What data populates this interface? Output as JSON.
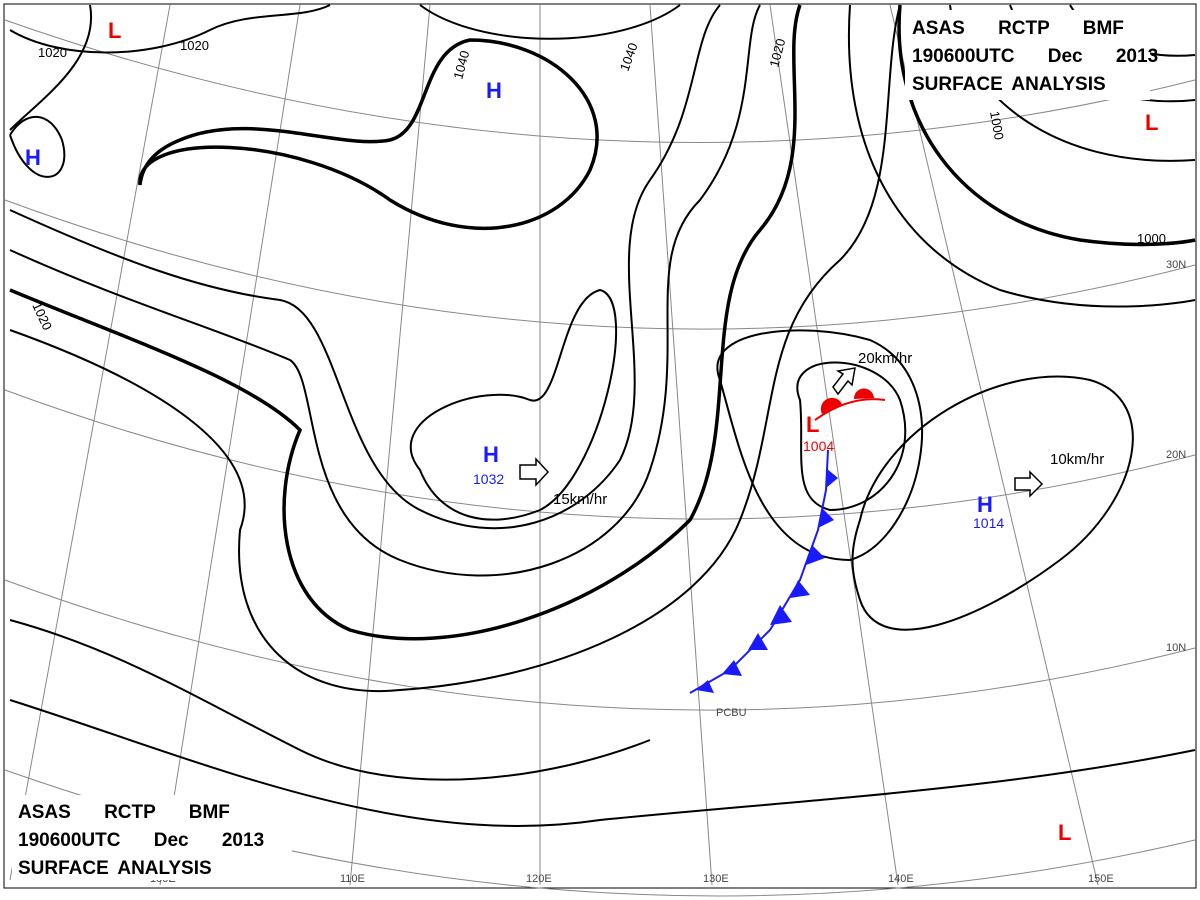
{
  "header_top": [
    "ASAS RCTP BMF",
    "190600UTC Dec 2013",
    "SURFACE ANALYSIS"
  ],
  "header_bottom": [
    "ASAS RCTP BMF",
    "190600UTC Dec 2013",
    "SURFACE ANALYSIS"
  ],
  "isobar_labels": [
    1020,
    1020,
    1040,
    1040,
    1020,
    1020,
    1000,
    1000
  ],
  "highs": [
    {
      "symbol": "H"
    },
    {
      "symbol": "H"
    },
    {
      "symbol": "H",
      "pressure": 1032,
      "motion": "15km/hr"
    },
    {
      "symbol": "H",
      "pressure": 1014,
      "motion": "10km/hr"
    }
  ],
  "lows": [
    {
      "symbol": "L"
    },
    {
      "symbol": "L"
    },
    {
      "symbol": "L"
    },
    {
      "symbol": "L",
      "pressure": 1004,
      "motion": "20km/hr"
    }
  ],
  "lon_labels": [
    "100E",
    "110E",
    "120E",
    "130E",
    "140E",
    "150E"
  ],
  "lat_labels": [
    "30N",
    "20N",
    "10N"
  ],
  "station_label": "PCBU"
}
